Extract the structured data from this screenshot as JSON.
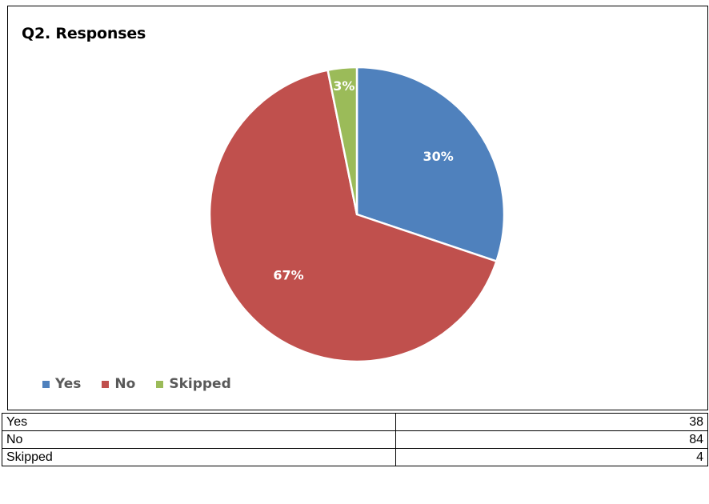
{
  "chart_data": {
    "type": "pie",
    "title": "Q2. Responses",
    "categories": [
      "Yes",
      "No",
      "Skipped"
    ],
    "values": [
      38,
      84,
      4
    ],
    "percent_labels": [
      "30%",
      "67%",
      "3%"
    ],
    "colors": [
      "#4F81BD",
      "#C0504D",
      "#9BBB59"
    ],
    "legend_position": "bottom-left"
  },
  "table": {
    "rows": [
      {
        "label": "Yes",
        "value": "38"
      },
      {
        "label": "No",
        "value": "84"
      },
      {
        "label": "Skipped",
        "value": "4"
      }
    ]
  }
}
